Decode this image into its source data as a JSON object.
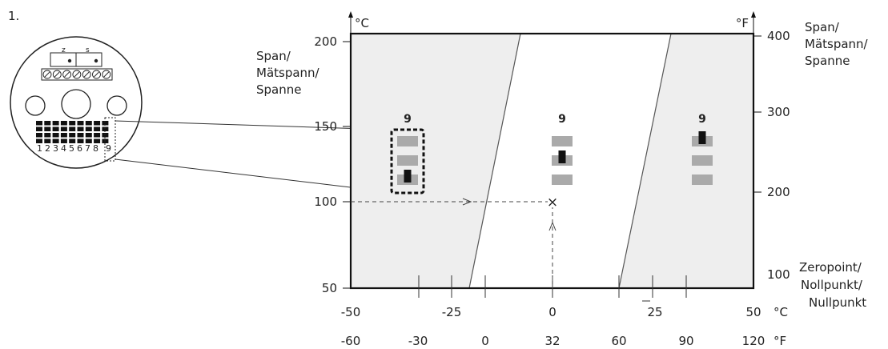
{
  "step_number": "1.",
  "left_axis": {
    "unit_label": "°C",
    "span_label_lines": [
      "Span/",
      "Mätspann/",
      "Spanne"
    ],
    "ticks": [
      "200",
      "150",
      "100",
      "50"
    ]
  },
  "right_axis": {
    "unit_label": "°F",
    "span_label_lines": [
      "Span/",
      "Mätspann/",
      "Spanne"
    ],
    "ticks": [
      "400",
      "300",
      "200",
      "100"
    ],
    "zero_label_lines": [
      "Zeropoint/",
      "Nollpunkt/",
      "Nullpunkt"
    ]
  },
  "bottom_axis": {
    "celsius_ticks": [
      "-50",
      "-25",
      "0",
      "25",
      "50"
    ],
    "celsius_unit": "°C",
    "fahrenheit_ticks": [
      "-60",
      "-30",
      "0",
      "32",
      "60",
      "90",
      "120"
    ],
    "fahrenheit_unit": "°F"
  },
  "switch_groups": [
    {
      "label": "9",
      "on_position": 2
    },
    {
      "label": "9",
      "on_position": 1
    },
    {
      "label": "9",
      "on_position": 0
    }
  ],
  "device": {
    "jumper_labels": [
      "z",
      "s"
    ],
    "dip_numbers": [
      "1",
      "2",
      "3",
      "4",
      "5",
      "6",
      "7",
      "8",
      "9"
    ]
  },
  "marker": "×",
  "colors": {
    "shaded_region": "#eeeeee",
    "switch_off": "#aaaaaa",
    "switch_on": "#111111",
    "line": "#333333"
  }
}
